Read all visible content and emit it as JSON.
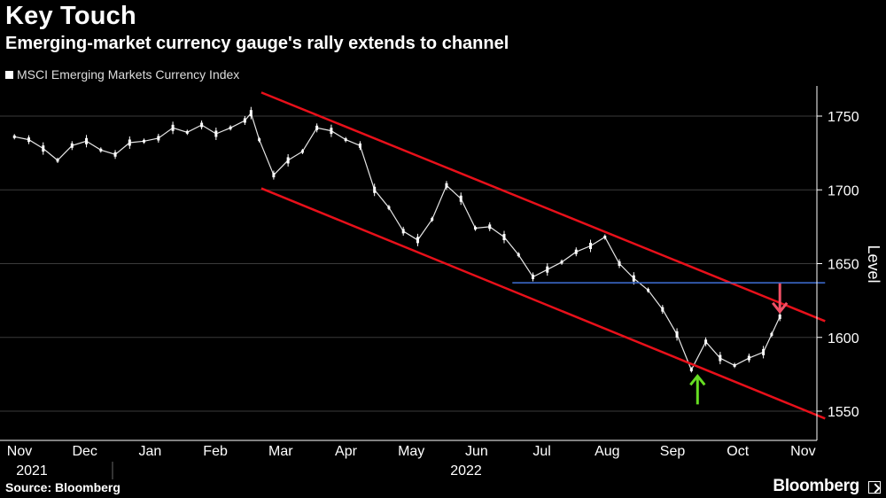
{
  "header": {
    "title": "Key Touch",
    "subtitle": "Emerging-market currency gauge's rally extends to channel"
  },
  "legend": {
    "label": "MSCI Emerging Markets Currency Index"
  },
  "footer": {
    "source": "Source: Bloomberg",
    "brand": "Bloomberg"
  },
  "colors": {
    "background": "#000000",
    "series": "#ffffff",
    "channel": "#e8101a",
    "level_line": "#3f6fd8",
    "up_arrow": "#66dd22",
    "down_arrow": "#f05066",
    "grid": "#3a3a3a"
  },
  "chart_data": {
    "type": "line",
    "style": "candlestick-like daily bars",
    "title": "Key Touch",
    "subtitle": "Emerging-market currency gauge's rally extends to channel",
    "ylabel": "Level",
    "ylim": [
      1530,
      1770
    ],
    "yticks": [
      1550,
      1600,
      1650,
      1700,
      1750
    ],
    "y_axis_side": "right",
    "grid": true,
    "legend_position": "top-left",
    "x_tick_labels": [
      "Nov",
      "Dec",
      "Jan",
      "Feb",
      "Mar",
      "Apr",
      "May",
      "Jun",
      "Jul",
      "Aug",
      "Sep",
      "Oct",
      "Nov"
    ],
    "x_year_labels": [
      "2021",
      "2022"
    ],
    "series": [
      {
        "name": "MSCI Emerging Markets Currency Index",
        "points": [
          [
            "2021-11-01",
            1736
          ],
          [
            "2021-11-08",
            1734
          ],
          [
            "2021-11-15",
            1728
          ],
          [
            "2021-11-22",
            1720
          ],
          [
            "2021-11-29",
            1730
          ],
          [
            "2021-12-06",
            1733
          ],
          [
            "2021-12-13",
            1727
          ],
          [
            "2021-12-20",
            1724
          ],
          [
            "2021-12-27",
            1732
          ],
          [
            "2022-01-03",
            1733
          ],
          [
            "2022-01-10",
            1735
          ],
          [
            "2022-01-17",
            1742
          ],
          [
            "2022-01-24",
            1739
          ],
          [
            "2022-01-31",
            1744
          ],
          [
            "2022-02-07",
            1738
          ],
          [
            "2022-02-14",
            1742
          ],
          [
            "2022-02-21",
            1747
          ],
          [
            "2022-02-24",
            1752
          ],
          [
            "2022-02-28",
            1734
          ],
          [
            "2022-03-07",
            1710
          ],
          [
            "2022-03-14",
            1720
          ],
          [
            "2022-03-21",
            1726
          ],
          [
            "2022-03-28",
            1742
          ],
          [
            "2022-04-04",
            1740
          ],
          [
            "2022-04-11",
            1734
          ],
          [
            "2022-04-18",
            1730
          ],
          [
            "2022-04-25",
            1700
          ],
          [
            "2022-05-02",
            1688
          ],
          [
            "2022-05-09",
            1672
          ],
          [
            "2022-05-16",
            1666
          ],
          [
            "2022-05-23",
            1680
          ],
          [
            "2022-05-30",
            1703
          ],
          [
            "2022-06-06",
            1694
          ],
          [
            "2022-06-13",
            1674
          ],
          [
            "2022-06-20",
            1675
          ],
          [
            "2022-06-27",
            1668
          ],
          [
            "2022-07-04",
            1656
          ],
          [
            "2022-07-11",
            1641
          ],
          [
            "2022-07-18",
            1646
          ],
          [
            "2022-07-25",
            1651
          ],
          [
            "2022-08-01",
            1658
          ],
          [
            "2022-08-08",
            1662
          ],
          [
            "2022-08-15",
            1668
          ],
          [
            "2022-08-22",
            1650
          ],
          [
            "2022-08-29",
            1640
          ],
          [
            "2022-09-05",
            1632
          ],
          [
            "2022-09-12",
            1619
          ],
          [
            "2022-09-19",
            1602
          ],
          [
            "2022-09-26",
            1578
          ],
          [
            "2022-10-03",
            1597
          ],
          [
            "2022-10-10",
            1586
          ],
          [
            "2022-10-17",
            1581
          ],
          [
            "2022-10-24",
            1586
          ],
          [
            "2022-10-31",
            1590
          ],
          [
            "2022-11-04",
            1602
          ],
          [
            "2022-11-08",
            1614
          ]
        ]
      },
      {
        "name": "Channel upper",
        "points": [
          [
            "2022-03-01",
            1766
          ],
          [
            "2022-11-30",
            1611
          ]
        ]
      },
      {
        "name": "Channel lower",
        "points": [
          [
            "2022-03-01",
            1701
          ],
          [
            "2022-11-30",
            1545
          ]
        ]
      },
      {
        "name": "Horizontal level",
        "points": [
          [
            "2022-07-01",
            1637
          ],
          [
            "2022-11-30",
            1637
          ]
        ]
      }
    ],
    "annotations": [
      {
        "type": "arrow-up",
        "x": "2022-09-29",
        "y": 1563
      },
      {
        "type": "arrow-down",
        "x": "2022-11-08",
        "y": 1627
      }
    ]
  }
}
